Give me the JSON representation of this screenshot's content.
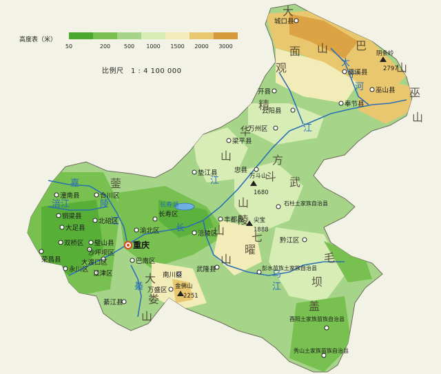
{
  "legend": {
    "title": "高度表（米）",
    "ticks": [
      "50",
      "200",
      "500",
      "1000",
      "1500",
      "2000",
      "3000"
    ],
    "colors": [
      "#4aa82e",
      "#78c050",
      "#a6d58a",
      "#d8ecb6",
      "#f2ecb8",
      "#e9c76f",
      "#d79a3a"
    ]
  },
  "scale": "比例尺　1 : 4 100 000",
  "cities": [
    {
      "name": "城口县"
    },
    {
      "name": "巫溪县"
    },
    {
      "name": "巫山县"
    },
    {
      "name": "奉节县"
    },
    {
      "name": "开县"
    },
    {
      "name": "云阳县"
    },
    {
      "name": "万州区"
    },
    {
      "name": "梁平县"
    },
    {
      "name": "垫江县"
    },
    {
      "name": "忠县"
    },
    {
      "name": "石柱土家族自治县"
    },
    {
      "name": "丰都县"
    },
    {
      "name": "长寿区"
    },
    {
      "name": "涪陵区"
    },
    {
      "name": "渝北区"
    },
    {
      "name": "北碚区"
    },
    {
      "name": "合川区"
    },
    {
      "name": "潼南县"
    },
    {
      "name": "铜梁县"
    },
    {
      "name": "大足县"
    },
    {
      "name": "双桥区"
    },
    {
      "name": "璧山县"
    },
    {
      "name": "荣昌县"
    },
    {
      "name": "永川区"
    },
    {
      "name": "沙坪坝区"
    },
    {
      "name": "大渡口区"
    },
    {
      "name": "江津区"
    },
    {
      "name": "巴南区"
    },
    {
      "name": "重庆"
    },
    {
      "name": "南川区"
    },
    {
      "name": "武隆县"
    },
    {
      "name": "万盛区"
    },
    {
      "name": "綦江县"
    },
    {
      "name": "黔江区"
    },
    {
      "name": "彭水苗族土家族自治县"
    },
    {
      "name": "酉阳土家族苗族自治县"
    },
    {
      "name": "秀山土家族苗族自治县"
    }
  ],
  "peaks": [
    {
      "name": "阴条岭",
      "elevation": "2797"
    },
    {
      "name": "万斗山",
      "elevation": "1680"
    },
    {
      "name": "尖宝",
      "elevation": "1888"
    },
    {
      "name": "金佛山",
      "elevation": "2251"
    }
  ],
  "ranges": [
    "大",
    "巴",
    "山",
    "巫",
    "山",
    "华",
    "山",
    "精",
    "山",
    "蓥",
    "方",
    "斗",
    "山",
    "七",
    "曜",
    "山",
    "武",
    "陵",
    "山",
    "毛",
    "坝",
    "盖",
    "大",
    "娄",
    "山",
    "观",
    "面"
  ],
  "rivers": [
    "嘉",
    "陵",
    "江",
    "长",
    "江",
    "江",
    "乌",
    "江",
    "长寿湖",
    "大",
    "宁",
    "河",
    "涪",
    "江",
    "綦"
  ],
  "colors": {
    "water": "#2a6fb3",
    "capital": "#e04a1a"
  }
}
